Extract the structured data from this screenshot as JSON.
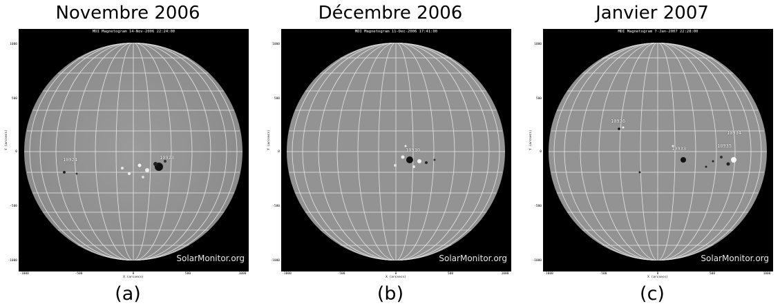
{
  "panels": [
    {
      "title": "Novembre 2006",
      "subtitle": "MDI Magnetogram 14-Nov-2006 22:24:00",
      "caption": "(a)",
      "watermark": "SolarMonitor.org",
      "regions": [
        "10924",
        "10923"
      ],
      "y_ticks": [
        "1000",
        "500",
        "0",
        "-500",
        "-1000"
      ],
      "x_ticks": [
        "-1000",
        "-500",
        "0",
        "500",
        "1000"
      ],
      "ylabel": "Y (arcsecs)",
      "xlabel": "X (arcsecs)"
    },
    {
      "title": "Décembre 2006",
      "subtitle": "MDI Magnetogram 11-Dec-2006 17:41:00",
      "caption": "(b)",
      "watermark": "SolarMonitor.org",
      "regions": [
        "10930"
      ],
      "y_ticks": [
        "1000",
        "500",
        "0",
        "-500",
        "-1000"
      ],
      "x_ticks": [
        "-1000",
        "-500",
        "0",
        "500",
        "1000"
      ],
      "ylabel": "Y (arcsecs)",
      "xlabel": "X (arcsecs)"
    },
    {
      "title": "Janvier 2007",
      "subtitle": "MDI Magnetogram 7-Jan-2007 22:28:00",
      "caption": "(c)",
      "watermark": "SolarMonitor.org",
      "regions": [
        "10936",
        "10934",
        "10935",
        "10933"
      ],
      "y_ticks": [
        "1000",
        "500",
        "0",
        "-500",
        "-1000"
      ],
      "x_ticks": [
        "-1000",
        "-500",
        "0",
        "500",
        "1000"
      ],
      "ylabel": "Y (arcsecs)",
      "xlabel": "X (arcsecs)"
    }
  ]
}
